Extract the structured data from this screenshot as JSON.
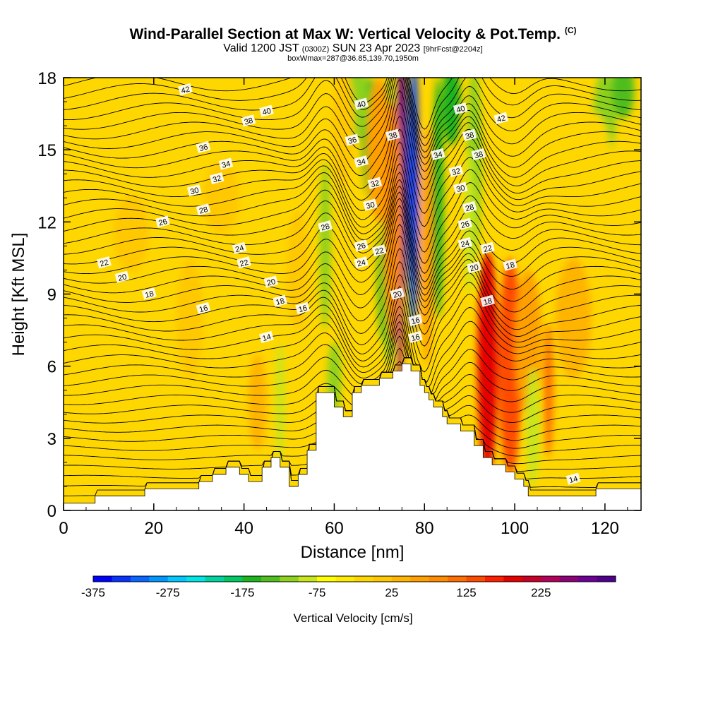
{
  "title": {
    "main": "Wind-Parallel Section at Max W: Vertical Velocity & Pot.Temp.",
    "copyright": "(C)",
    "valid_prefix": "Valid 1200 JST",
    "utc": "(0300Z)",
    "valid_date": "SUN 23 Apr 2023",
    "forecast": "[9hrFcst@2204z]",
    "box": "boxWmax=287@36.85,139.70,1950m"
  },
  "chart_data": {
    "type": "heatmap",
    "xlabel": "Distance [nm]",
    "ylabel": "Height [Kft MSL]",
    "xlim": [
      0,
      128
    ],
    "ylim": [
      0,
      18
    ],
    "x_ticks": [
      "0",
      "20",
      "40",
      "60",
      "80",
      "100",
      "120"
    ],
    "y_ticks": [
      "0",
      "3",
      "6",
      "9",
      "12",
      "15",
      "18"
    ],
    "grid": false,
    "colorbar": {
      "label": "Vertical Velocity [cm/s]",
      "placement": "bottom",
      "tick_labels": [
        "-375",
        "-275",
        "-175",
        "-75",
        "25",
        "125",
        "225"
      ],
      "colors": [
        "#0000ff",
        "#0a32ff",
        "#0a64ff",
        "#0096ff",
        "#00c8ff",
        "#00e6e6",
        "#00d2a0",
        "#00c864",
        "#1eb41e",
        "#50be1e",
        "#8cd21e",
        "#c8e61e",
        "#ffff00",
        "#ffeb00",
        "#ffd700",
        "#ffc800",
        "#ffb400",
        "#ffa000",
        "#ff8c00",
        "#ff6e00",
        "#ff4b00",
        "#ff1e00",
        "#e60000",
        "#c80028",
        "#b4005a",
        "#8c0078",
        "#6e0096",
        "#50008c"
      ]
    },
    "terrain_kft": [
      [
        0,
        0.3
      ],
      [
        7,
        0.3
      ],
      [
        7,
        0.6
      ],
      [
        18,
        0.6
      ],
      [
        18,
        0.9
      ],
      [
        30,
        0.9
      ],
      [
        30,
        1.2
      ],
      [
        33,
        1.2
      ],
      [
        33,
        1.5
      ],
      [
        36,
        1.5
      ],
      [
        36,
        1.8
      ],
      [
        39,
        1.8
      ],
      [
        39,
        1.5
      ],
      [
        41,
        1.5
      ],
      [
        41,
        1.2
      ],
      [
        44,
        1.2
      ],
      [
        44,
        1.8
      ],
      [
        46,
        1.8
      ],
      [
        46,
        2.2
      ],
      [
        48,
        2.2
      ],
      [
        48,
        1.8
      ],
      [
        50,
        1.8
      ],
      [
        50,
        1.0
      ],
      [
        52,
        1.0
      ],
      [
        52,
        1.5
      ],
      [
        54,
        1.5
      ],
      [
        54,
        2.5
      ],
      [
        56,
        2.5
      ],
      [
        56,
        4.9
      ],
      [
        60,
        4.9
      ],
      [
        60,
        4.3
      ],
      [
        62,
        4.3
      ],
      [
        62,
        3.9
      ],
      [
        64,
        3.9
      ],
      [
        64,
        4.9
      ],
      [
        66,
        4.9
      ],
      [
        66,
        5.2
      ],
      [
        70,
        5.2
      ],
      [
        70,
        5.5
      ],
      [
        73,
        5.5
      ],
      [
        73,
        5.8
      ],
      [
        75,
        5.8
      ],
      [
        75,
        6.1
      ],
      [
        77,
        6.1
      ],
      [
        77,
        5.8
      ],
      [
        79,
        5.8
      ],
      [
        79,
        5.2
      ],
      [
        80,
        5.2
      ],
      [
        80,
        4.9
      ],
      [
        81,
        4.9
      ],
      [
        81,
        4.6
      ],
      [
        82,
        4.6
      ],
      [
        82,
        4.3
      ],
      [
        84,
        4.3
      ],
      [
        84,
        3.9
      ],
      [
        85,
        3.9
      ],
      [
        85,
        3.6
      ],
      [
        88,
        3.6
      ],
      [
        88,
        3.3
      ],
      [
        91,
        3.3
      ],
      [
        91,
        2.7
      ],
      [
        93,
        2.7
      ],
      [
        93,
        2.2
      ],
      [
        95,
        2.2
      ],
      [
        95,
        1.9
      ],
      [
        98,
        1.9
      ],
      [
        98,
        1.6
      ],
      [
        100,
        1.6
      ],
      [
        100,
        1.3
      ],
      [
        102,
        1.3
      ],
      [
        102,
        1.0
      ],
      [
        103,
        1.0
      ],
      [
        103,
        0.6
      ],
      [
        118,
        0.6
      ],
      [
        118,
        0.9
      ],
      [
        128,
        0.9
      ],
      [
        128,
        0
      ]
    ],
    "theta_levels_c": [
      14,
      16,
      18,
      20,
      22,
      24,
      26,
      28,
      30,
      32,
      34,
      36,
      38,
      40,
      42
    ],
    "contour_labels": [
      {
        "x": 27,
        "y": 17.5,
        "text": "42"
      },
      {
        "x": 45,
        "y": 16.6,
        "text": "40"
      },
      {
        "x": 41,
        "y": 16.2,
        "text": "38"
      },
      {
        "x": 31,
        "y": 15.1,
        "text": "36"
      },
      {
        "x": 36,
        "y": 14.4,
        "text": "34"
      },
      {
        "x": 34,
        "y": 13.8,
        "text": "32"
      },
      {
        "x": 29,
        "y": 13.3,
        "text": "30"
      },
      {
        "x": 31,
        "y": 12.5,
        "text": "28"
      },
      {
        "x": 22,
        "y": 12.0,
        "text": "26"
      },
      {
        "x": 39,
        "y": 10.9,
        "text": "24"
      },
      {
        "x": 40,
        "y": 10.3,
        "text": "22"
      },
      {
        "x": 9,
        "y": 10.3,
        "text": "22"
      },
      {
        "x": 13,
        "y": 9.7,
        "text": "20"
      },
      {
        "x": 19,
        "y": 9.0,
        "text": "18"
      },
      {
        "x": 46,
        "y": 9.5,
        "text": "20"
      },
      {
        "x": 48,
        "y": 8.7,
        "text": "18"
      },
      {
        "x": 31,
        "y": 8.4,
        "text": "16"
      },
      {
        "x": 53,
        "y": 8.4,
        "text": "16"
      },
      {
        "x": 45,
        "y": 7.2,
        "text": "14"
      },
      {
        "x": 66,
        "y": 16.9,
        "text": "40"
      },
      {
        "x": 64,
        "y": 15.4,
        "text": "36"
      },
      {
        "x": 73,
        "y": 15.6,
        "text": "38"
      },
      {
        "x": 66,
        "y": 14.5,
        "text": "34"
      },
      {
        "x": 69,
        "y": 13.6,
        "text": "32"
      },
      {
        "x": 68,
        "y": 12.7,
        "text": "30"
      },
      {
        "x": 58,
        "y": 11.8,
        "text": "28"
      },
      {
        "x": 66,
        "y": 11.0,
        "text": "26"
      },
      {
        "x": 66,
        "y": 10.3,
        "text": "24"
      },
      {
        "x": 70,
        "y": 10.8,
        "text": "22"
      },
      {
        "x": 74,
        "y": 9.0,
        "text": "20"
      },
      {
        "x": 78,
        "y": 7.9,
        "text": "16"
      },
      {
        "x": 78,
        "y": 7.2,
        "text": "16"
      },
      {
        "x": 88,
        "y": 16.7,
        "text": "40"
      },
      {
        "x": 97,
        "y": 16.3,
        "text": "42"
      },
      {
        "x": 90,
        "y": 15.6,
        "text": "38"
      },
      {
        "x": 92,
        "y": 14.8,
        "text": "38"
      },
      {
        "x": 83,
        "y": 14.8,
        "text": "34"
      },
      {
        "x": 87,
        "y": 14.1,
        "text": "32"
      },
      {
        "x": 88,
        "y": 13.4,
        "text": "30"
      },
      {
        "x": 90,
        "y": 12.6,
        "text": "28"
      },
      {
        "x": 89,
        "y": 11.9,
        "text": "26"
      },
      {
        "x": 89,
        "y": 11.1,
        "text": "24"
      },
      {
        "x": 94,
        "y": 10.9,
        "text": "22"
      },
      {
        "x": 91,
        "y": 10.1,
        "text": "20"
      },
      {
        "x": 99,
        "y": 10.2,
        "text": "18"
      },
      {
        "x": 94,
        "y": 8.7,
        "text": "18"
      },
      {
        "x": 113,
        "y": 1.3,
        "text": "14"
      }
    ]
  }
}
